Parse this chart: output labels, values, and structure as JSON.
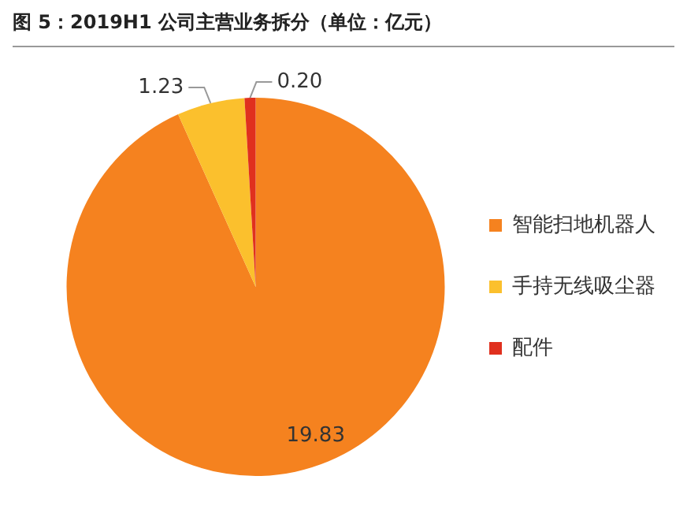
{
  "chart_data": {
    "type": "pie",
    "title": "图 5：2019H1 公司主营业务拆分（单位：亿元）",
    "categories": [
      "智能扫地机器人",
      "手持无线吸尘器",
      "配件"
    ],
    "values": [
      19.83,
      1.23,
      0.2
    ],
    "colors": [
      "#f5821f",
      "#fbc02d",
      "#e0301e"
    ],
    "value_labels": [
      "19.83",
      "1.23",
      "0.20"
    ],
    "legend": "right"
  }
}
